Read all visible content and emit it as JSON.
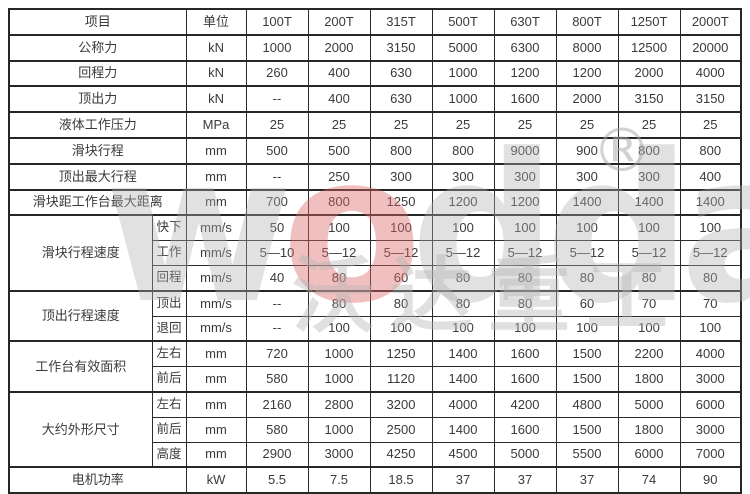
{
  "table": {
    "header": {
      "item": "项目",
      "unit": "单位",
      "models": [
        "100T",
        "200T",
        "315T",
        "500T",
        "630T",
        "800T",
        "1250T",
        "2000T"
      ]
    },
    "rows": [
      {
        "label": "公称力",
        "span": 1,
        "unit": "kN",
        "values": [
          "1000",
          "2000",
          "3150",
          "5000",
          "6300",
          "8000",
          "12500",
          "20000"
        ]
      },
      {
        "label": "回程力",
        "span": 1,
        "unit": "kN",
        "values": [
          "260",
          "400",
          "630",
          "1000",
          "1200",
          "1200",
          "2000",
          "4000"
        ]
      },
      {
        "label": "顶出力",
        "span": 1,
        "unit": "kN",
        "values": [
          "--",
          "400",
          "630",
          "1000",
          "1600",
          "2000",
          "3150",
          "3150"
        ]
      },
      {
        "label": "液体工作压力",
        "span": 1,
        "unit": "MPa",
        "values": [
          "25",
          "25",
          "25",
          "25",
          "25",
          "25",
          "25",
          "25"
        ]
      },
      {
        "label": "滑块行程",
        "span": 1,
        "unit": "mm",
        "values": [
          "500",
          "500",
          "800",
          "800",
          "9000",
          "900",
          "800",
          "800"
        ]
      },
      {
        "label": "顶出最大行程",
        "span": 1,
        "unit": "mm",
        "values": [
          "--",
          "250",
          "300",
          "300",
          "300",
          "300",
          "300",
          "400"
        ]
      },
      {
        "label": "滑块距工作台最大距离",
        "span": 1,
        "unit": "mm",
        "values": [
          "700",
          "800",
          "1250",
          "1200",
          "1200",
          "1400",
          "1400",
          "1400"
        ]
      },
      {
        "label": "滑块行程速度",
        "span": 3,
        "sub": "快下",
        "unit": "mm/s",
        "values": [
          "50",
          "100",
          "100",
          "100",
          "100",
          "100",
          "100",
          "100"
        ]
      },
      {
        "sub": "工作",
        "unit": "mm/s",
        "values": [
          "5—10",
          "5—12",
          "5—12",
          "5—12",
          "5—12",
          "5—12",
          "5—12",
          "5—12"
        ]
      },
      {
        "sub": "回程",
        "unit": "mm/s",
        "values": [
          "40",
          "80",
          "60",
          "80",
          "80",
          "80",
          "80",
          "80"
        ]
      },
      {
        "label": "顶出行程速度",
        "span": 2,
        "sub": "顶出",
        "unit": "mm/s",
        "values": [
          "--",
          "80",
          "80",
          "80",
          "80",
          "60",
          "70",
          "70"
        ]
      },
      {
        "sub": "退回",
        "unit": "mm/s",
        "values": [
          "--",
          "100",
          "100",
          "100",
          "100",
          "100",
          "100",
          "100"
        ]
      },
      {
        "label": "工作台有效面积",
        "span": 2,
        "sub": "左右",
        "unit": "mm",
        "values": [
          "720",
          "1000",
          "1250",
          "1400",
          "1600",
          "1500",
          "2200",
          "4000"
        ]
      },
      {
        "sub": "前后",
        "unit": "mm",
        "values": [
          "580",
          "1000",
          "1120",
          "1400",
          "1600",
          "1500",
          "1800",
          "3000"
        ]
      },
      {
        "label": "大约外形尺寸",
        "span": 3,
        "sub": "左右",
        "unit": "mm",
        "values": [
          "2160",
          "2800",
          "3200",
          "4000",
          "4200",
          "4800",
          "5000",
          "6000"
        ]
      },
      {
        "sub": "前后",
        "unit": "mm",
        "values": [
          "580",
          "1000",
          "2500",
          "1400",
          "1600",
          "1500",
          "1800",
          "3000"
        ]
      },
      {
        "sub": "高度",
        "unit": "mm",
        "values": [
          "2900",
          "3000",
          "4250",
          "4500",
          "5000",
          "5500",
          "6000",
          "7000"
        ]
      },
      {
        "label": "电机功率",
        "span": 1,
        "unit": "kW",
        "values": [
          "5.5",
          "7.5",
          "18.5",
          "37",
          "37",
          "37",
          "74",
          "90"
        ]
      }
    ]
  },
  "watermark": {
    "logo_letters": [
      "w",
      "o",
      "d",
      "d",
      "a"
    ],
    "red_letter_index": 1,
    "registered_mark": "®",
    "company_name": "沃达重工",
    "logo_gray": "#b1b1b1",
    "logo_red": "#db6a6a"
  }
}
